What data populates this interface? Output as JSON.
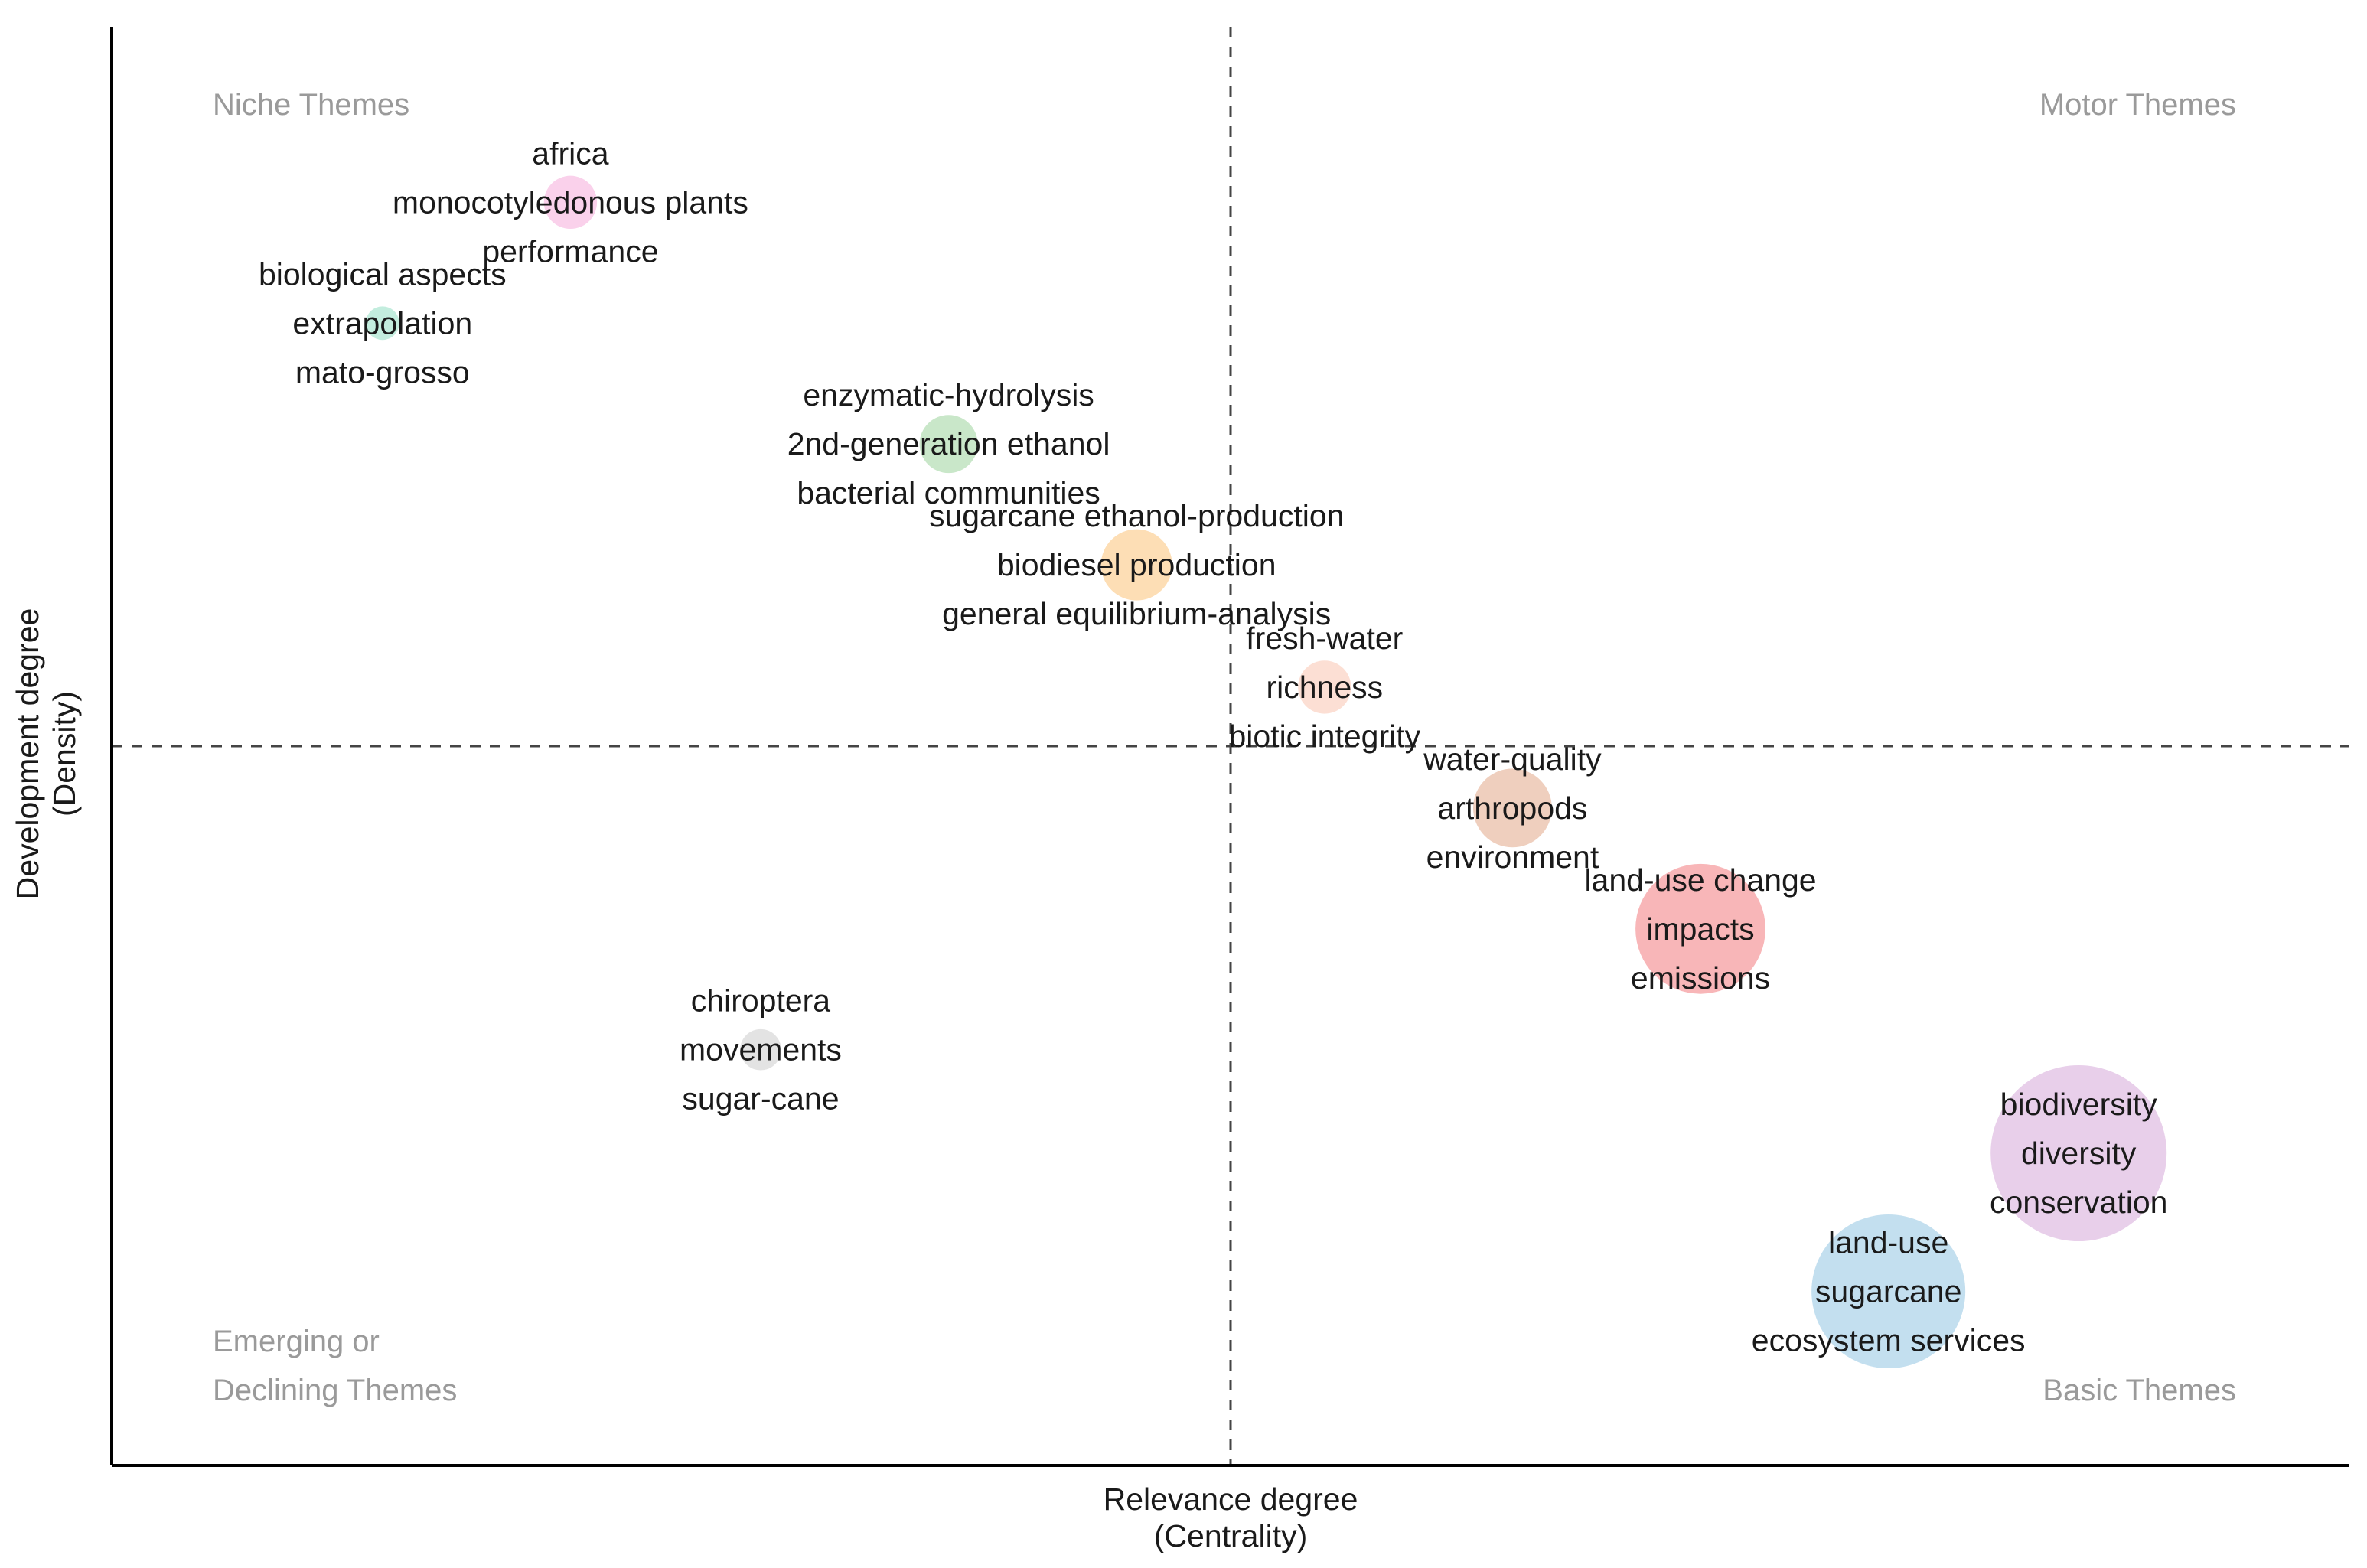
{
  "chart_data": {
    "type": "scatter",
    "title": "",
    "xlabel": [
      "Relevance degree",
      "(Centrality)"
    ],
    "ylabel": [
      "Development degree",
      "(Density)"
    ],
    "xlim": [
      0,
      100
    ],
    "ylim": [
      0,
      100
    ],
    "x_divider": 50,
    "y_divider": 50,
    "quadrants": {
      "top_left": [
        "Niche Themes"
      ],
      "top_right": [
        "Motor Themes"
      ],
      "bottom_left": [
        "Emerging or",
        "Declining Themes"
      ],
      "bottom_right": [
        "Basic Themes"
      ]
    },
    "clusters": [
      {
        "x": 20.5,
        "y": 87.8,
        "size": 5,
        "color": "#f9c9e8",
        "labels": [
          "africa",
          "monocotyledonous plants",
          "performance"
        ]
      },
      {
        "x": 12.1,
        "y": 79.4,
        "size": 2,
        "color": "#b9ead8",
        "labels": [
          "biological aspects",
          "extrapolation",
          "mato-grosso"
        ]
      },
      {
        "x": 37.4,
        "y": 71.0,
        "size": 6,
        "color": "#bfe3bf",
        "labels": [
          "enzymatic-hydrolysis",
          "2nd-generation ethanol",
          "bacterial communities"
        ]
      },
      {
        "x": 45.8,
        "y": 62.6,
        "size": 9,
        "color": "#fdd8a8",
        "labels": [
          "sugarcane ethanol-production",
          "biodiesel production",
          "general equilibrium-analysis"
        ]
      },
      {
        "x": 54.2,
        "y": 54.1,
        "size": 5,
        "color": "#fbd9cc",
        "labels": [
          "fresh-water",
          "richness",
          "biotic integrity"
        ]
      },
      {
        "x": 62.6,
        "y": 45.7,
        "size": 11,
        "color": "#ecc7b3",
        "labels": [
          "water-quality",
          "arthropods",
          "environment"
        ]
      },
      {
        "x": 71.0,
        "y": 37.3,
        "size": 30,
        "color": "#f7a9ab",
        "labels": [
          "land-use change",
          "impacts",
          "emissions"
        ]
      },
      {
        "x": 29.0,
        "y": 28.9,
        "size": 3,
        "color": "#dedede",
        "labels": [
          "chiroptera",
          "movements",
          "sugar-cane"
        ]
      },
      {
        "x": 87.9,
        "y": 21.7,
        "size": 55,
        "color": "#e4c7e6",
        "labels": [
          "biodiversity",
          "diversity",
          "conservation"
        ]
      },
      {
        "x": 79.4,
        "y": 12.1,
        "size": 42,
        "color": "#b9d9ec",
        "labels": [
          "land-use",
          "sugarcane",
          "ecosystem services"
        ]
      }
    ]
  }
}
